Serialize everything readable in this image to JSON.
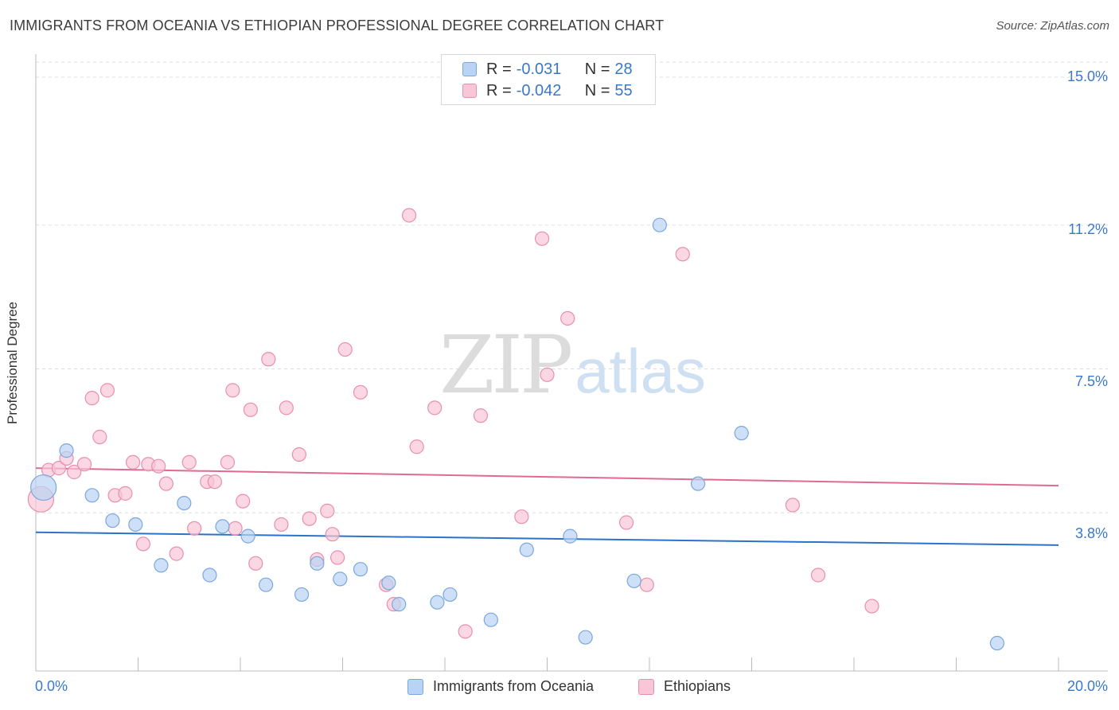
{
  "title": "IMMIGRANTS FROM OCEANIA VS ETHIOPIAN PROFESSIONAL DEGREE CORRELATION CHART",
  "source": "Source: ZipAtlas.com",
  "watermark": {
    "zip": "ZIP",
    "atlas": "atlas"
  },
  "legend_top": {
    "rows": [
      {
        "r_label": "R =",
        "r_value": "-0.031",
        "n_label": "N =",
        "n_value": "28"
      },
      {
        "r_label": "R =",
        "r_value": "-0.042",
        "n_label": "N =",
        "n_value": "55"
      }
    ]
  },
  "colors": {
    "blue_fill": "#b9d3f4",
    "blue_stroke": "#7aa7dd",
    "blue_line": "#2b72c9",
    "pink_fill": "#f8c6d6",
    "pink_stroke": "#e98fae",
    "pink_line": "#e06a93",
    "axis_text": "#3a78c8",
    "grid": "#dddddd"
  },
  "chart_data": {
    "type": "scatter",
    "title": "IMMIGRANTS FROM OCEANIA VS ETHIOPIAN PROFESSIONAL DEGREE CORRELATION CHART",
    "xlabel": "",
    "ylabel": "Professional Degree",
    "xlim": [
      0,
      20
    ],
    "ylim": [
      0,
      15.0
    ],
    "x_tick_labels": [
      "0.0%",
      "20.0%"
    ],
    "y_ticks": [
      3.8,
      7.5,
      11.2,
      15.0
    ],
    "y_tick_labels": [
      "3.8%",
      "7.5%",
      "11.2%",
      "15.0%"
    ],
    "grid": "horizontal-dashed",
    "legend_placement": "bottom-center",
    "series": [
      {
        "name": "Immigrants from Oceania",
        "color": "#b9d3f4",
        "R": -0.031,
        "N": 28,
        "trend": {
          "x": [
            0,
            20
          ],
          "y": [
            3.3,
            2.97
          ]
        },
        "points": [
          {
            "x": 0.15,
            "y": 4.45,
            "big": true
          },
          {
            "x": 0.6,
            "y": 5.4
          },
          {
            "x": 1.1,
            "y": 4.25
          },
          {
            "x": 1.5,
            "y": 3.6
          },
          {
            "x": 1.95,
            "y": 3.5
          },
          {
            "x": 2.45,
            "y": 2.45
          },
          {
            "x": 2.9,
            "y": 4.05
          },
          {
            "x": 3.4,
            "y": 2.2
          },
          {
            "x": 3.65,
            "y": 3.45
          },
          {
            "x": 4.15,
            "y": 3.2
          },
          {
            "x": 4.5,
            "y": 1.95
          },
          {
            "x": 5.2,
            "y": 1.7
          },
          {
            "x": 5.5,
            "y": 2.5
          },
          {
            "x": 5.95,
            "y": 2.1
          },
          {
            "x": 6.35,
            "y": 2.35
          },
          {
            "x": 6.9,
            "y": 2.0
          },
          {
            "x": 7.1,
            "y": 1.45
          },
          {
            "x": 7.85,
            "y": 1.5
          },
          {
            "x": 8.1,
            "y": 1.7
          },
          {
            "x": 8.9,
            "y": 1.05
          },
          {
            "x": 9.6,
            "y": 2.85
          },
          {
            "x": 10.45,
            "y": 3.2
          },
          {
            "x": 10.75,
            "y": 0.6
          },
          {
            "x": 11.7,
            "y": 2.05
          },
          {
            "x": 12.2,
            "y": 11.2
          },
          {
            "x": 12.95,
            "y": 4.55
          },
          {
            "x": 13.8,
            "y": 5.85
          },
          {
            "x": 18.8,
            "y": 0.45
          }
        ]
      },
      {
        "name": "Ethiopians",
        "color": "#f8c6d6",
        "R": -0.042,
        "N": 55,
        "trend": {
          "x": [
            0,
            20
          ],
          "y": [
            4.95,
            4.5
          ]
        },
        "points": [
          {
            "x": 0.1,
            "y": 4.15,
            "big": true
          },
          {
            "x": 0.25,
            "y": 4.9
          },
          {
            "x": 0.45,
            "y": 4.95
          },
          {
            "x": 0.6,
            "y": 5.2
          },
          {
            "x": 0.75,
            "y": 4.85
          },
          {
            "x": 0.95,
            "y": 5.05
          },
          {
            "x": 1.1,
            "y": 6.75
          },
          {
            "x": 1.25,
            "y": 5.75
          },
          {
            "x": 1.4,
            "y": 6.95
          },
          {
            "x": 1.55,
            "y": 4.25
          },
          {
            "x": 1.75,
            "y": 4.3
          },
          {
            "x": 1.9,
            "y": 5.1
          },
          {
            "x": 2.1,
            "y": 3.0
          },
          {
            "x": 2.2,
            "y": 5.05
          },
          {
            "x": 2.4,
            "y": 5.0
          },
          {
            "x": 2.55,
            "y": 4.55
          },
          {
            "x": 2.75,
            "y": 2.75
          },
          {
            "x": 3.0,
            "y": 5.1
          },
          {
            "x": 3.1,
            "y": 3.4
          },
          {
            "x": 3.35,
            "y": 4.6
          },
          {
            "x": 3.5,
            "y": 4.6
          },
          {
            "x": 3.75,
            "y": 5.1
          },
          {
            "x": 3.85,
            "y": 6.95
          },
          {
            "x": 3.9,
            "y": 3.4
          },
          {
            "x": 4.05,
            "y": 4.1
          },
          {
            "x": 4.2,
            "y": 6.45
          },
          {
            "x": 4.3,
            "y": 2.5
          },
          {
            "x": 4.55,
            "y": 7.75
          },
          {
            "x": 4.8,
            "y": 3.5
          },
          {
            "x": 4.9,
            "y": 6.5
          },
          {
            "x": 5.15,
            "y": 5.3
          },
          {
            "x": 5.35,
            "y": 3.65
          },
          {
            "x": 5.5,
            "y": 2.6
          },
          {
            "x": 5.7,
            "y": 3.85
          },
          {
            "x": 5.8,
            "y": 3.25
          },
          {
            "x": 5.9,
            "y": 2.65
          },
          {
            "x": 6.05,
            "y": 8.0
          },
          {
            "x": 6.35,
            "y": 6.9
          },
          {
            "x": 6.85,
            "y": 1.95
          },
          {
            "x": 7.0,
            "y": 1.45
          },
          {
            "x": 7.3,
            "y": 11.45
          },
          {
            "x": 7.45,
            "y": 5.5
          },
          {
            "x": 7.8,
            "y": 6.5
          },
          {
            "x": 8.4,
            "y": 0.75
          },
          {
            "x": 8.7,
            "y": 6.3
          },
          {
            "x": 9.5,
            "y": 3.7
          },
          {
            "x": 9.9,
            "y": 10.85
          },
          {
            "x": 10.0,
            "y": 7.35
          },
          {
            "x": 10.4,
            "y": 8.8
          },
          {
            "x": 11.55,
            "y": 3.55
          },
          {
            "x": 11.95,
            "y": 1.95
          },
          {
            "x": 12.65,
            "y": 10.45
          },
          {
            "x": 14.8,
            "y": 4.0
          },
          {
            "x": 15.3,
            "y": 2.2
          },
          {
            "x": 16.35,
            "y": 1.4
          }
        ]
      }
    ]
  }
}
